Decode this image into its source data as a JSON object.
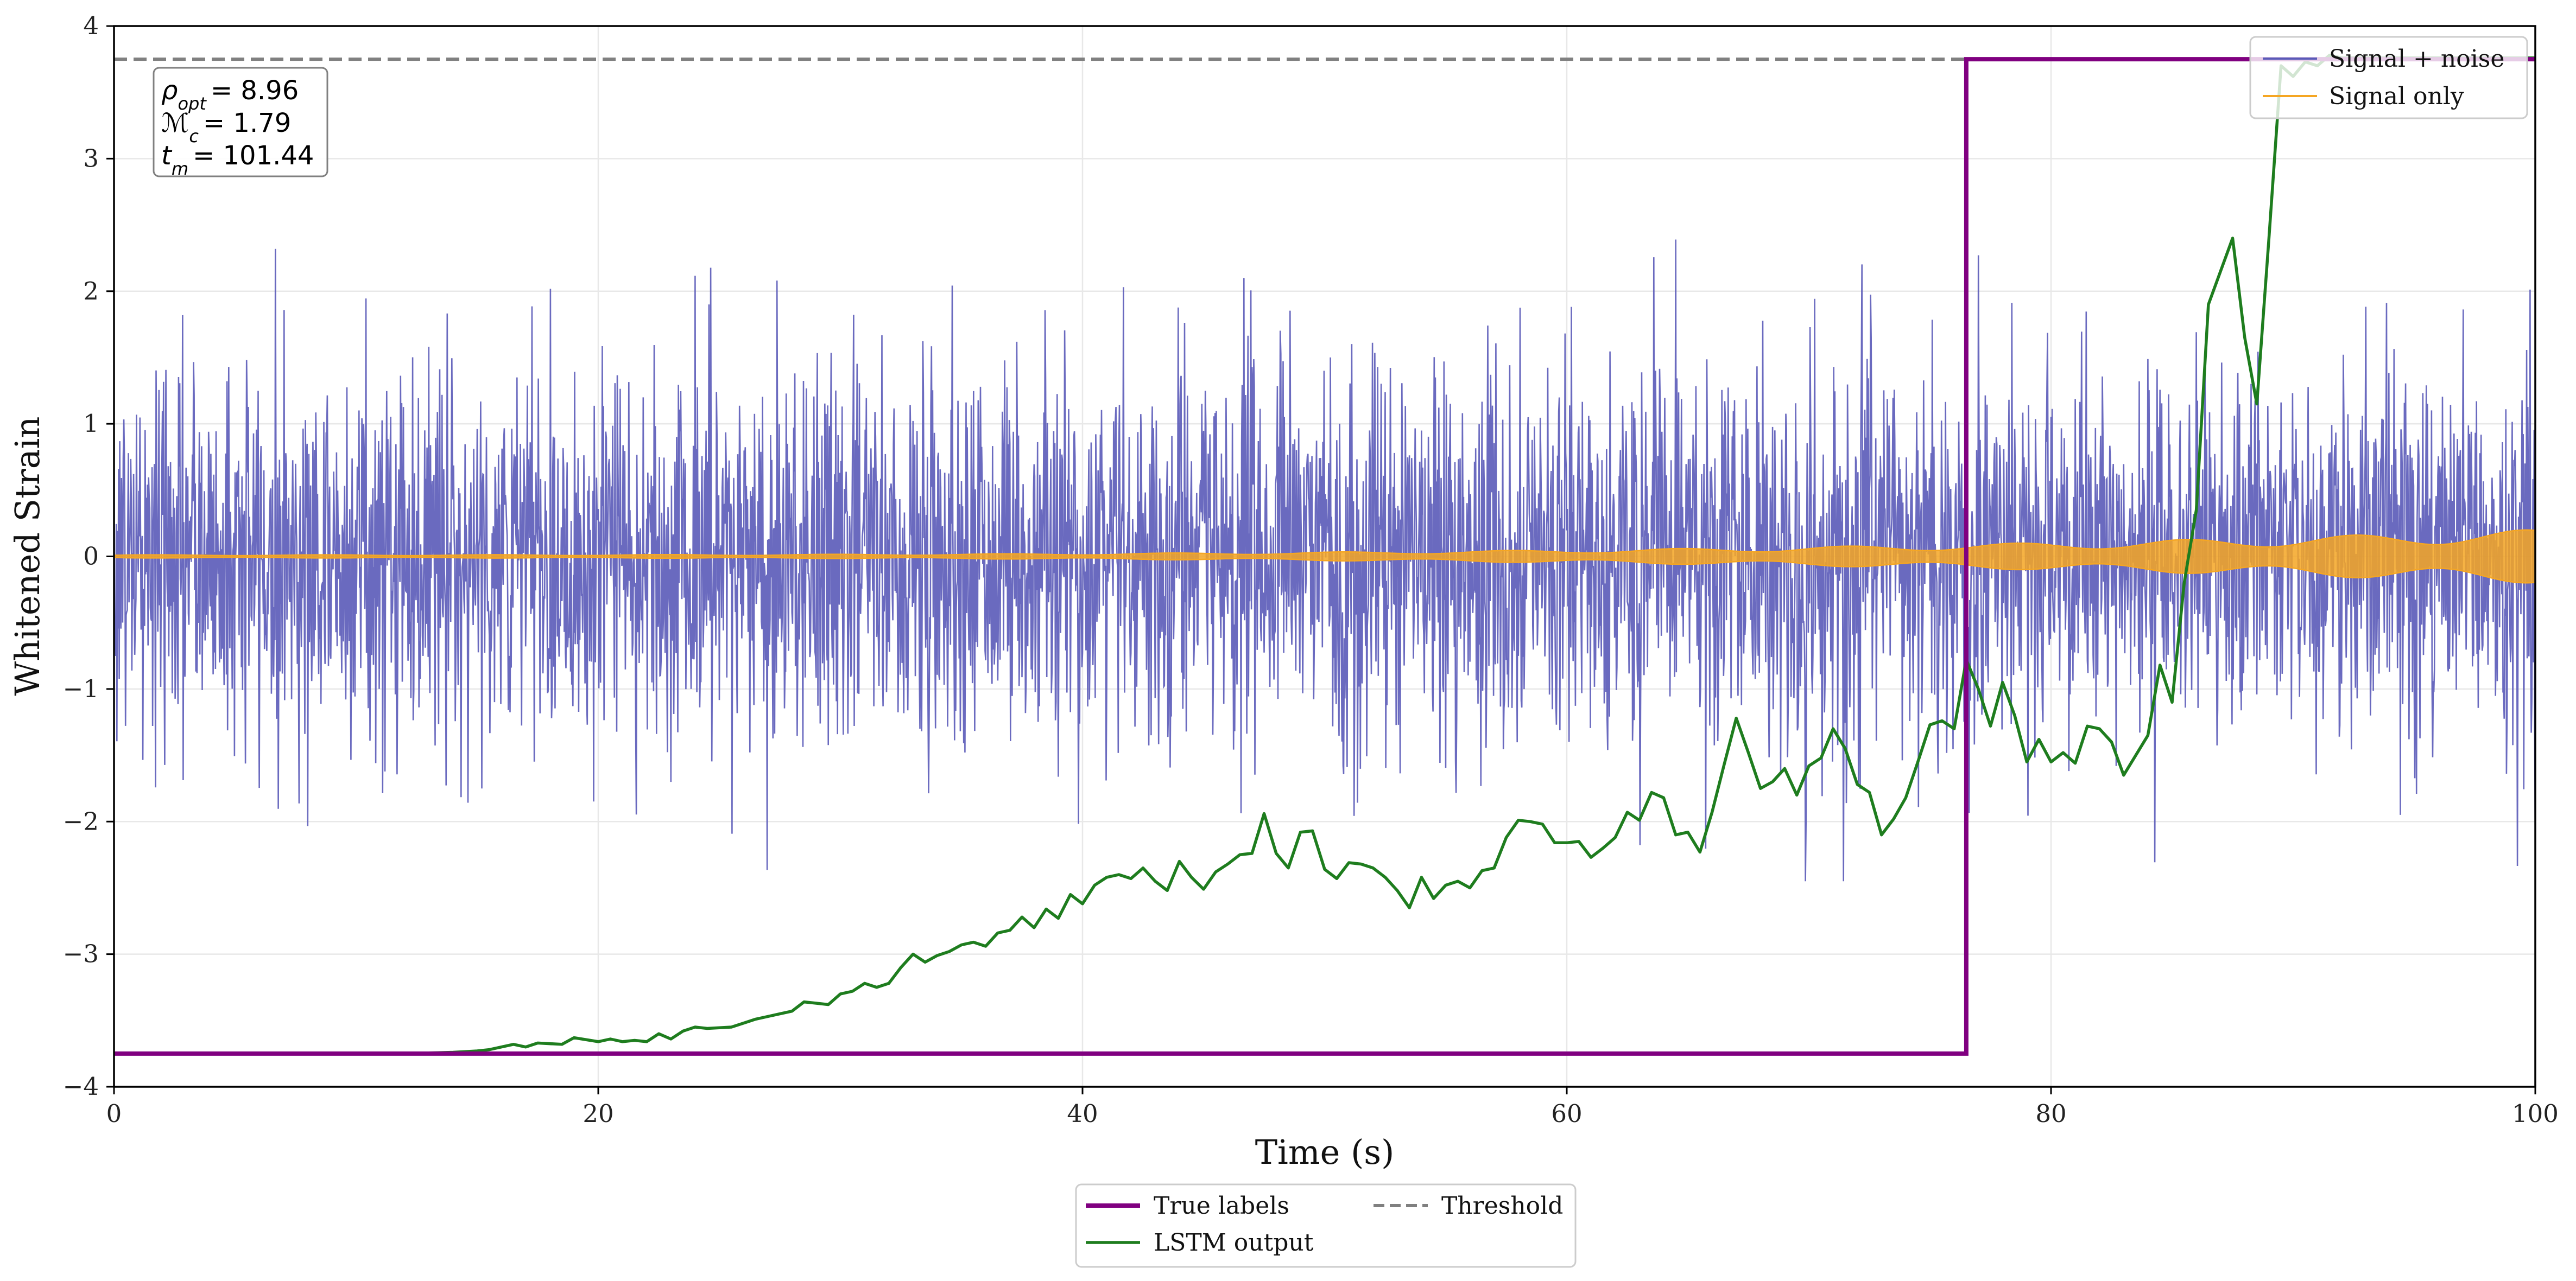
{
  "chart_data": {
    "type": "line",
    "title": "",
    "xlabel": "Time (s)",
    "ylabel": "Whitened Strain",
    "xlim": [
      0,
      100
    ],
    "ylim": [
      -4,
      4
    ],
    "xticks": [
      0,
      20,
      40,
      60,
      80,
      100
    ],
    "yticks": [
      -4,
      -3,
      -2,
      -1,
      0,
      1,
      2,
      3,
      4
    ],
    "xtick_labels": [
      "0",
      "20",
      "40",
      "60",
      "80",
      "100"
    ],
    "ytick_labels": [
      "−4",
      "−3",
      "−2",
      "−1",
      "0",
      "1",
      "2",
      "3",
      "4"
    ],
    "grid": true,
    "threshold": 3.75,
    "info_box": {
      "rho_symbol": "ρ",
      "rho_sub": "opt",
      "rho_value": "= 8.96",
      "mc_symbol": "ℳ",
      "mc_sub": "c",
      "mc_value": "= 1.79",
      "tm_symbol": "t",
      "tm_sub": "m",
      "tm_value": "= 101.44"
    },
    "legend_upper": [
      {
        "label": "Signal + noise",
        "color": "#5a5ab8"
      },
      {
        "label": "Signal only",
        "color": "#f5a623"
      }
    ],
    "legend_lower": [
      {
        "label": "True labels",
        "color": "#800080",
        "style": "solid"
      },
      {
        "label": "Threshold",
        "color": "#808080",
        "style": "dashed"
      },
      {
        "label": "LSTM output",
        "color": "#1e7d1e",
        "style": "solid"
      }
    ],
    "series": [
      {
        "name": "True labels",
        "color": "#800080",
        "points": [
          [
            0,
            -3.75
          ],
          [
            76.5,
            -3.75
          ],
          [
            76.5,
            3.75
          ],
          [
            100,
            3.75
          ]
        ]
      },
      {
        "name": "LSTM output",
        "color": "#1e7d1e",
        "points": [
          [
            0,
            -3.75
          ],
          [
            12,
            -3.75
          ],
          [
            14,
            -3.74
          ],
          [
            15,
            -3.73
          ],
          [
            15.5,
            -3.72
          ],
          [
            16,
            -3.7
          ],
          [
            16.5,
            -3.68
          ],
          [
            17,
            -3.7
          ],
          [
            17.5,
            -3.67
          ],
          [
            18.5,
            -3.68
          ],
          [
            19,
            -3.63
          ],
          [
            20,
            -3.66
          ],
          [
            20.5,
            -3.64
          ],
          [
            21,
            -3.66
          ],
          [
            21.5,
            -3.65
          ],
          [
            22,
            -3.66
          ],
          [
            22.5,
            -3.6
          ],
          [
            23,
            -3.64
          ],
          [
            23.5,
            -3.58
          ],
          [
            24,
            -3.55
          ],
          [
            24.5,
            -3.56
          ],
          [
            25.5,
            -3.55
          ],
          [
            26,
            -3.52
          ],
          [
            26.5,
            -3.49
          ],
          [
            27,
            -3.47
          ],
          [
            27.5,
            -3.45
          ],
          [
            28,
            -3.43
          ],
          [
            28.5,
            -3.36
          ],
          [
            29,
            -3.37
          ],
          [
            29.5,
            -3.38
          ],
          [
            30,
            -3.3
          ],
          [
            30.5,
            -3.28
          ],
          [
            31,
            -3.22
          ],
          [
            31.5,
            -3.25
          ],
          [
            32,
            -3.22
          ],
          [
            32.5,
            -3.1
          ],
          [
            33,
            -3.0
          ],
          [
            33.5,
            -3.06
          ],
          [
            34,
            -3.01
          ],
          [
            34.5,
            -2.98
          ],
          [
            35,
            -2.93
          ],
          [
            35.5,
            -2.91
          ],
          [
            36,
            -2.94
          ],
          [
            36.5,
            -2.84
          ],
          [
            37,
            -2.82
          ],
          [
            37.5,
            -2.72
          ],
          [
            38,
            -2.8
          ],
          [
            38.5,
            -2.66
          ],
          [
            39,
            -2.73
          ],
          [
            39.5,
            -2.55
          ],
          [
            40,
            -2.62
          ],
          [
            40.5,
            -2.48
          ],
          [
            41,
            -2.42
          ],
          [
            41.5,
            -2.4
          ],
          [
            42,
            -2.43
          ],
          [
            42.5,
            -2.35
          ],
          [
            43,
            -2.45
          ],
          [
            43.5,
            -2.52
          ],
          [
            44,
            -2.3
          ],
          [
            44.5,
            -2.42
          ],
          [
            45,
            -2.51
          ],
          [
            45.5,
            -2.38
          ],
          [
            46,
            -2.32
          ],
          [
            46.5,
            -2.25
          ],
          [
            47,
            -2.24
          ],
          [
            47.5,
            -1.94
          ],
          [
            48,
            -2.24
          ],
          [
            48.5,
            -2.35
          ],
          [
            49,
            -2.08
          ],
          [
            49.5,
            -2.07
          ],
          [
            50,
            -2.36
          ],
          [
            50.5,
            -2.43
          ],
          [
            51,
            -2.31
          ],
          [
            51.5,
            -2.32
          ],
          [
            52,
            -2.35
          ],
          [
            52.5,
            -2.42
          ],
          [
            53,
            -2.52
          ],
          [
            53.5,
            -2.65
          ],
          [
            54,
            -2.42
          ],
          [
            54.5,
            -2.58
          ],
          [
            55,
            -2.48
          ],
          [
            55.5,
            -2.45
          ],
          [
            56,
            -2.5
          ],
          [
            56.5,
            -2.37
          ],
          [
            57,
            -2.35
          ],
          [
            57.5,
            -2.12
          ],
          [
            58,
            -1.99
          ],
          [
            58.5,
            -2.0
          ],
          [
            59,
            -2.02
          ],
          [
            59.5,
            -2.16
          ],
          [
            60,
            -2.16
          ],
          [
            60.5,
            -2.15
          ],
          [
            61,
            -2.27
          ],
          [
            61.5,
            -2.2
          ],
          [
            62,
            -2.12
          ],
          [
            62.5,
            -1.93
          ],
          [
            63,
            -1.99
          ],
          [
            63.5,
            -1.78
          ],
          [
            64,
            -1.82
          ],
          [
            64.5,
            -2.1
          ],
          [
            65,
            -2.08
          ],
          [
            65.5,
            -2.23
          ],
          [
            66,
            -1.93
          ],
          [
            66.5,
            -1.57
          ],
          [
            67,
            -1.22
          ],
          [
            67.5,
            -1.48
          ],
          [
            68,
            -1.75
          ],
          [
            68.5,
            -1.7
          ],
          [
            69,
            -1.6
          ],
          [
            69.5,
            -1.8
          ],
          [
            70,
            -1.58
          ],
          [
            70.5,
            -1.52
          ],
          [
            71,
            -1.3
          ],
          [
            71.5,
            -1.45
          ],
          [
            72,
            -1.72
          ],
          [
            72.5,
            -1.78
          ],
          [
            73,
            -2.1
          ],
          [
            73.5,
            -1.98
          ],
          [
            74,
            -1.82
          ],
          [
            74.5,
            -1.55
          ],
          [
            75,
            -1.27
          ],
          [
            75.5,
            -1.24
          ],
          [
            76,
            -1.3
          ],
          [
            76.5,
            -0.78
          ],
          [
            77,
            -1.0
          ],
          [
            77.5,
            -1.28
          ],
          [
            78,
            -0.95
          ],
          [
            78.5,
            -1.2
          ],
          [
            79,
            -1.55
          ],
          [
            79.5,
            -1.38
          ],
          [
            80,
            -1.55
          ],
          [
            80.5,
            -1.48
          ],
          [
            81,
            -1.56
          ],
          [
            81.5,
            -1.28
          ],
          [
            82,
            -1.3
          ],
          [
            82.5,
            -1.4
          ],
          [
            83,
            -1.65
          ],
          [
            83.5,
            -1.5
          ],
          [
            84,
            -1.35
          ],
          [
            84.5,
            -0.82
          ],
          [
            85,
            -1.1
          ],
          [
            85.5,
            -0.2
          ],
          [
            86,
            0.35
          ],
          [
            86.5,
            1.9
          ],
          [
            87,
            2.15
          ],
          [
            87.5,
            2.4
          ],
          [
            88,
            1.65
          ],
          [
            88.5,
            1.15
          ],
          [
            89,
            2.4
          ],
          [
            89.5,
            3.7
          ],
          [
            90,
            3.62
          ],
          [
            90.5,
            3.73
          ],
          [
            91,
            3.7
          ],
          [
            91.5,
            3.78
          ],
          [
            92,
            3.76
          ],
          [
            100,
            3.76
          ]
        ]
      }
    ]
  }
}
